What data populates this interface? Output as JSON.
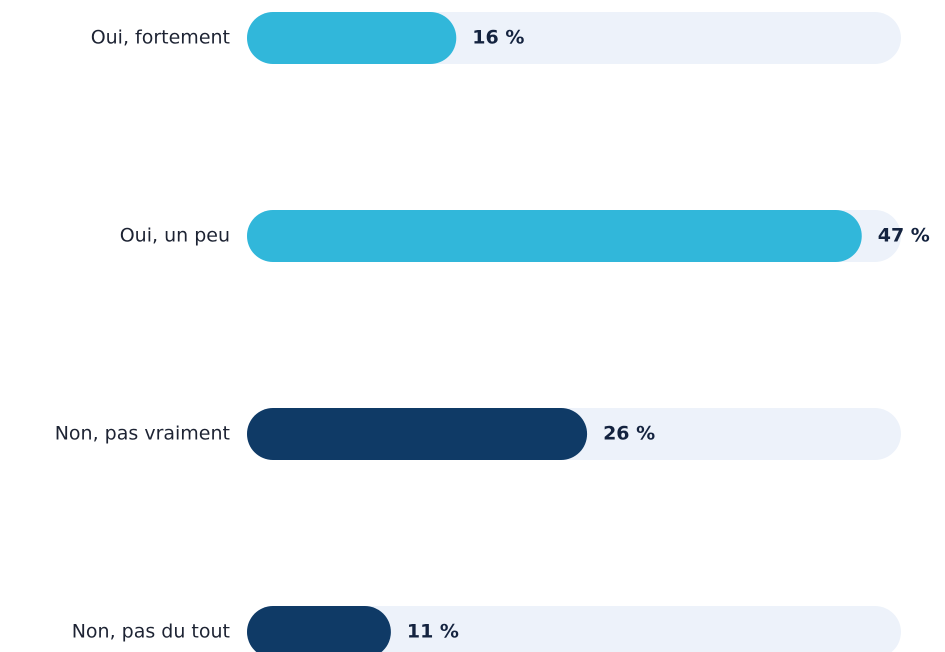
{
  "chart_data": {
    "type": "hbar",
    "categories": [
      "Oui, fortement",
      "Oui, un peu",
      "Non, pas vraiment",
      "Non, pas du tout"
    ],
    "values": [
      16,
      47,
      26,
      11
    ],
    "value_labels": [
      "16 %",
      "47 %",
      "26 %",
      "11 %"
    ],
    "colors": [
      "#31b7da",
      "#31b7da",
      "#0f3a66",
      "#0f3a66"
    ],
    "track_color": "#edf2fa",
    "xlim": [
      0,
      50
    ]
  }
}
